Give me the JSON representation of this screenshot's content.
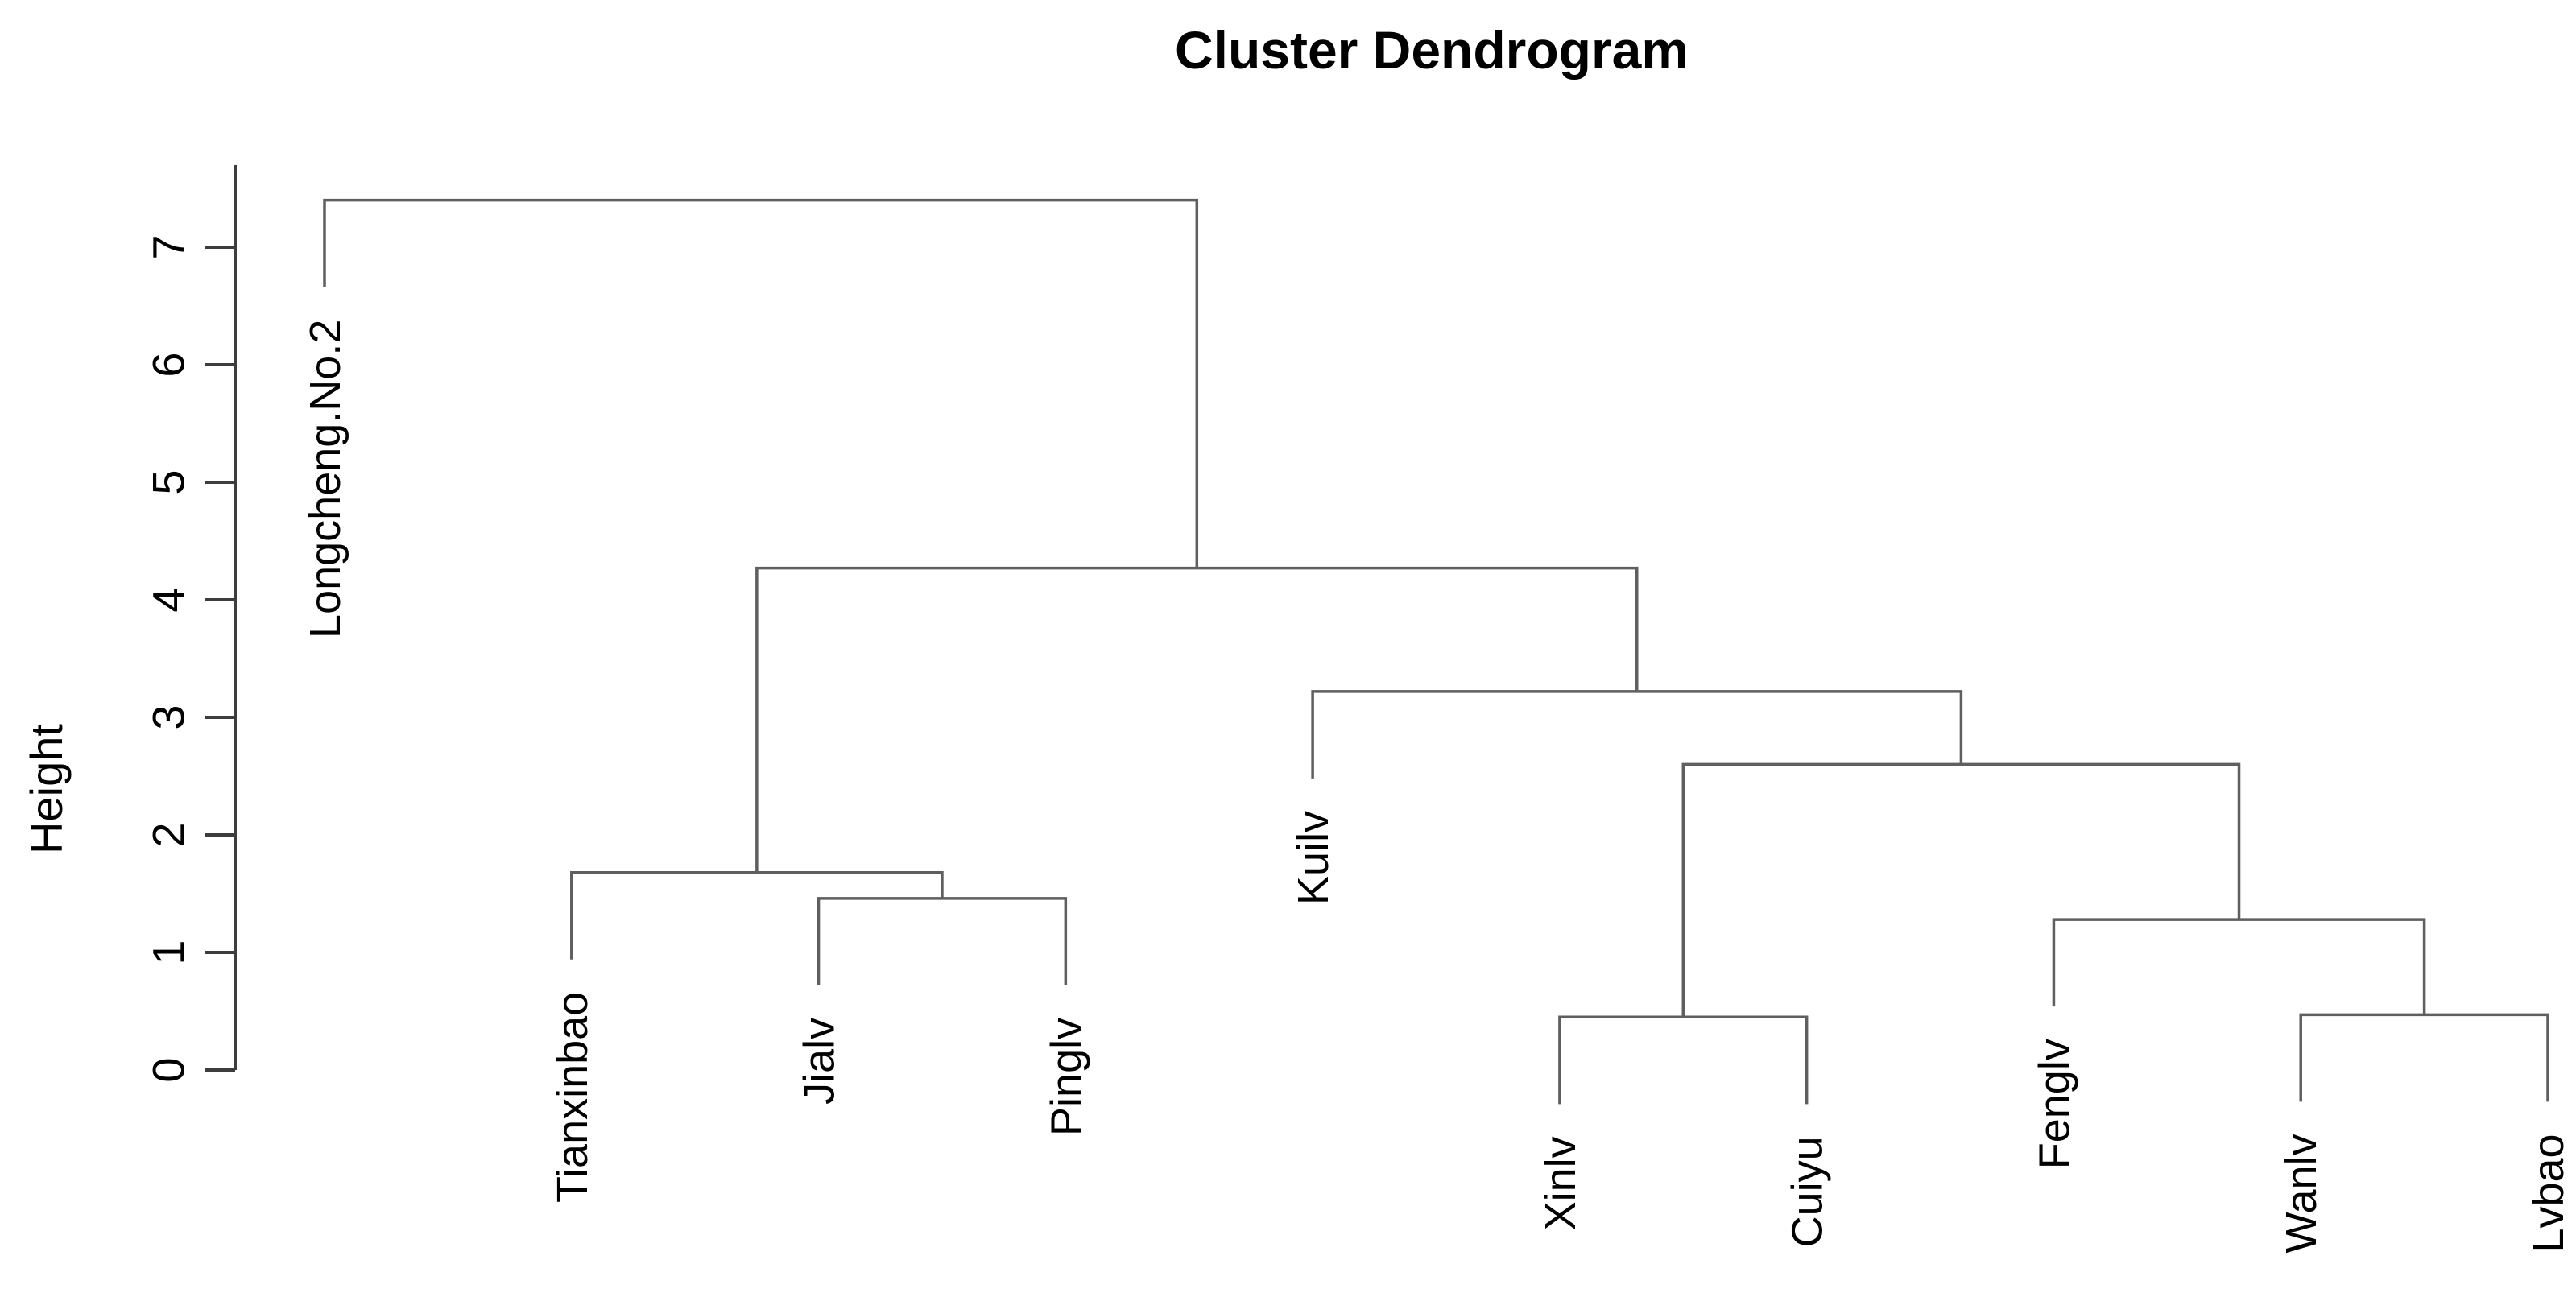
{
  "title": "Cluster Dendrogram",
  "y_axis": {
    "label": "Height",
    "ticks": [
      "0",
      "1",
      "2",
      "3",
      "4",
      "5",
      "6",
      "7"
    ]
  },
  "chart_data": {
    "type": "dendrogram",
    "orientation": "vertical",
    "title": "Cluster Dendrogram",
    "ylabel": "Height",
    "ylim": [
      0,
      7.45
    ],
    "yticks": [
      0,
      1,
      2,
      3,
      4,
      5,
      6,
      7
    ],
    "grid": false,
    "hang": 0.74,
    "leaves": [
      "Longcheng.No.2",
      "Tianxinbao",
      "Jialv",
      "Pinglv",
      "Kuilv",
      "Xinlv",
      "Cuiyu",
      "Fenglv",
      "Wanlv",
      "Lvbao"
    ],
    "merges": [
      {
        "id": "n1",
        "join": [
          "Xinlv",
          "Cuiyu"
        ],
        "height": 0.45
      },
      {
        "id": "n2",
        "join": [
          "Wanlv",
          "Lvbao"
        ],
        "height": 0.47
      },
      {
        "id": "n3",
        "join": [
          "Fenglv",
          "n2"
        ],
        "height": 1.28
      },
      {
        "id": "n4",
        "join": [
          "Jialv",
          "Pinglv"
        ],
        "height": 1.46
      },
      {
        "id": "n5",
        "join": [
          "Tianxinbao",
          "n4"
        ],
        "height": 1.68
      },
      {
        "id": "n6",
        "join": [
          "n1",
          "n3"
        ],
        "height": 2.6
      },
      {
        "id": "n7",
        "join": [
          "Kuilv",
          "n6"
        ],
        "height": 3.22
      },
      {
        "id": "n8",
        "join": [
          "n5",
          "n7"
        ],
        "height": 4.27
      },
      {
        "id": "n9",
        "join": [
          "Longcheng.No.2",
          "n8"
        ],
        "height": 7.4
      }
    ],
    "colors": {
      "tree": "#5f5f5f",
      "axis": "#3d3d3d",
      "text": "#000000",
      "background": "#ffffff"
    }
  }
}
